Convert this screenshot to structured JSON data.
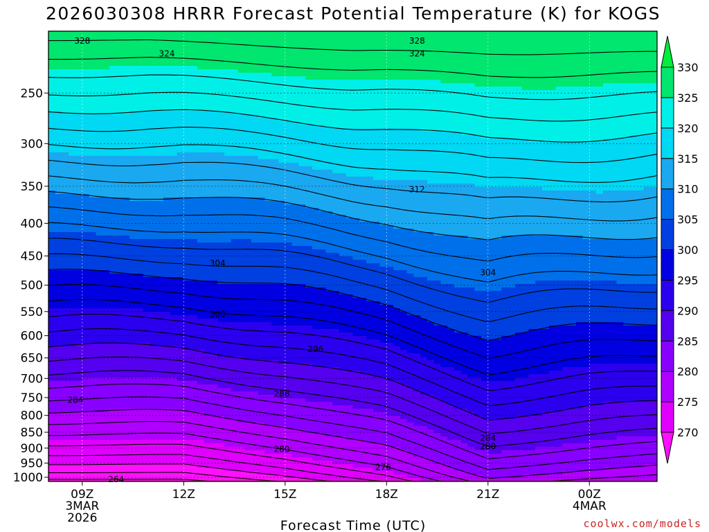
{
  "title": "2026030308 HRRR Forecast Potential Temperature (K) for KOGS",
  "x_axis_label": "Forecast Time (UTC)",
  "credit": "coolwx.com/models",
  "chart_data": {
    "type": "contour",
    "title": "2026030308 HRRR Forecast Potential Temperature (K) for KOGS",
    "xlabel": "Forecast Time (UTC)",
    "ylabel": "",
    "x_ticks": [
      {
        "h": 9,
        "lines": [
          "09Z",
          "3MAR",
          "2026"
        ]
      },
      {
        "h": 12,
        "lines": [
          "12Z"
        ]
      },
      {
        "h": 15,
        "lines": [
          "15Z"
        ]
      },
      {
        "h": 18,
        "lines": [
          "18Z"
        ]
      },
      {
        "h": 21,
        "lines": [
          "21Z"
        ]
      },
      {
        "h": 24,
        "lines": [
          "00Z",
          "4MAR"
        ]
      }
    ],
    "xlim": [
      8,
      26
    ],
    "y_scale": "log",
    "ylim": [
      1015,
      200
    ],
    "y_ticks": [
      250,
      300,
      350,
      400,
      450,
      500,
      550,
      600,
      650,
      700,
      750,
      800,
      850,
      900,
      950,
      1000
    ],
    "colorbar": {
      "levels": [
        270,
        275,
        280,
        285,
        290,
        295,
        300,
        305,
        310,
        315,
        320,
        325,
        330
      ],
      "colors": [
        "#ff10ff",
        "#e000ff",
        "#b000ff",
        "#8800ff",
        "#5500ee",
        "#2a00ee",
        "#0000e0",
        "#0040e0",
        "#0070ea",
        "#1aa8f0",
        "#00d8f4",
        "#00f0e8",
        "#00e66e",
        "#00ee3c"
      ]
    },
    "ground_color": "#a0522d",
    "contour_interval_K": 2,
    "contour_labels": [
      {
        "value": 328,
        "h": 9.0,
        "p": 207
      },
      {
        "value": 328,
        "h": 18.9,
        "p": 207
      },
      {
        "value": 324,
        "h": 11.5,
        "p": 217
      },
      {
        "value": 324,
        "h": 18.9,
        "p": 217
      },
      {
        "value": 312,
        "h": 18.9,
        "p": 354
      },
      {
        "value": 304,
        "h": 13.0,
        "p": 462
      },
      {
        "value": 304,
        "h": 21.0,
        "p": 478
      },
      {
        "value": 300,
        "h": 13.0,
        "p": 555
      },
      {
        "value": 296,
        "h": 15.9,
        "p": 630
      },
      {
        "value": 288,
        "h": 14.9,
        "p": 740
      },
      {
        "value": 284,
        "h": 8.8,
        "p": 757
      },
      {
        "value": 284,
        "h": 21.0,
        "p": 868
      },
      {
        "value": 280,
        "h": 14.9,
        "p": 904
      },
      {
        "value": 280,
        "h": 21.0,
        "p": 895
      },
      {
        "value": 276,
        "h": 17.9,
        "p": 964
      },
      {
        "value": 264,
        "h": 10.0,
        "p": 1007
      }
    ],
    "profiles": [
      {
        "h": 8,
        "theta_surface": 265,
        "p_surface": 1012
      },
      {
        "h": 12,
        "theta_surface": 265,
        "p_surface": 1012
      },
      {
        "h": 15,
        "theta_surface": 268,
        "p_surface": 1012
      },
      {
        "h": 18,
        "theta_surface": 272,
        "p_surface": 1012
      },
      {
        "h": 21,
        "theta_surface": 279,
        "p_surface": 1012
      },
      {
        "h": 24,
        "theta_surface": 277,
        "p_surface": 1012
      },
      {
        "h": 26,
        "theta_surface": 276,
        "p_surface": 1012
      }
    ]
  }
}
